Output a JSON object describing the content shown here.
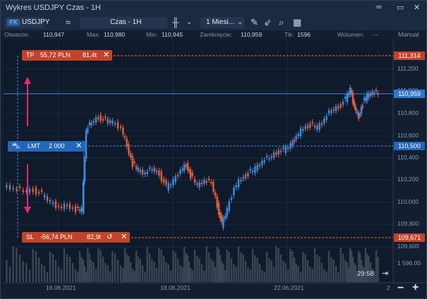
{
  "window": {
    "title": "Wykres USDJPY Czas - 1H"
  },
  "toolbar": {
    "symbol_badge": "FX",
    "symbol": "USDJPY",
    "timeframe": "Czas - 1H",
    "period": "1 Miesi...",
    "icons": [
      "compare-icon",
      "candles-icon",
      "draw-icon",
      "indicator-icon",
      "search-icon",
      "calendar-icon",
      "link-icon",
      "popout-icon",
      "close-icon"
    ]
  },
  "info": {
    "open_label": "Otwarcie:",
    "open_value": "110,947",
    "max_label": "Max:",
    "max_value": "110,980",
    "min_label": "Min:",
    "min_value": "110,945",
    "close_label": "Zamknięcie:",
    "close_value": "110,959",
    "tick_label": "Tik:",
    "tick_value": "1596",
    "volume_label": "Wolumen:",
    "volume_value": "---",
    "mode": "Manual"
  },
  "orders": {
    "tp": {
      "type": "TP",
      "amount": "55,72 PLN",
      "ticks": "81,4t",
      "price": "111,314"
    },
    "lmt": {
      "type": "LMT",
      "qty": "2 000",
      "price": "110,500"
    },
    "sl": {
      "type": "SL",
      "amount": "-56,74 PLN",
      "ticks": "82,9t",
      "price": "109,671"
    }
  },
  "current_price": "110,959",
  "price_axis": [
    "111,200",
    "111,000",
    "110,800",
    "110,600",
    "110,400",
    "110,200",
    "110,000",
    "109,800",
    "109,600"
  ],
  "volume_axis_label": "1 596,00",
  "time_axis": [
    "16.06.2021",
    "18.06.2021",
    "22.06.2021",
    "2"
  ],
  "timer": "29:58",
  "colors": {
    "up": "#3a8ee6",
    "down": "#e0603d",
    "tp_line": "#ef6a45",
    "lmt_line": "#3a8ee6",
    "price_line": "#3f8fe0"
  }
}
